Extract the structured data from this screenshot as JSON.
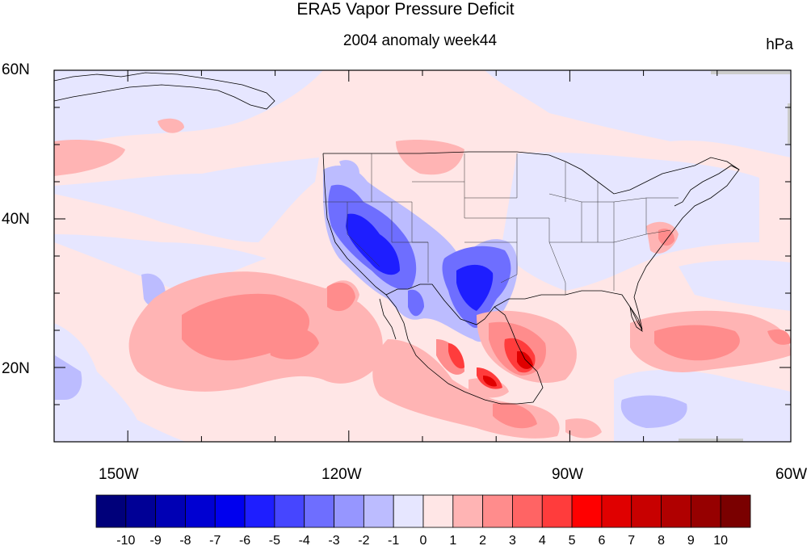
{
  "title": "ERA5 Vapor Pressure Deficit",
  "subtitle": "2004 anomaly week44",
  "units": "hPa",
  "axes": {
    "lon_labels": [
      "150W",
      "120W",
      "90W",
      "60W"
    ],
    "lat_labels": [
      "60N",
      "40N",
      "20N"
    ],
    "lon_range": [
      "160W",
      "60W"
    ],
    "lat_range": [
      "10N",
      "60N"
    ]
  },
  "colorbar": {
    "labels": [
      "-10",
      "-9",
      "-8",
      "-7",
      "-6",
      "-5",
      "-4",
      "-3",
      "-2",
      "-1",
      "0",
      "1",
      "2",
      "3",
      "4",
      "5",
      "6",
      "7",
      "8",
      "9",
      "10"
    ],
    "colors": [
      "#00007a",
      "#000096",
      "#0000b4",
      "#0000d2",
      "#0000ee",
      "#1e1eff",
      "#4646ff",
      "#6e6eff",
      "#9696ff",
      "#bcbcff",
      "#e6e6ff",
      "#ffe6e6",
      "#ffb4b4",
      "#ff8c8c",
      "#ff6464",
      "#ff3c3c",
      "#ff0000",
      "#e00000",
      "#c80000",
      "#b00000",
      "#960000",
      "#7a0000"
    ]
  },
  "map_colors": {
    "neg_light": "#e6e6ff",
    "neg_mid": "#bcbcff",
    "neg_strong": "#6e6eff",
    "neg_deep": "#1e1eff",
    "pos_light": "#ffe6e6",
    "pos_mid": "#ffb4b4",
    "pos_strong": "#ff8c8c",
    "pos_deep": "#ff3c3c",
    "pos_max": "#e00000"
  }
}
